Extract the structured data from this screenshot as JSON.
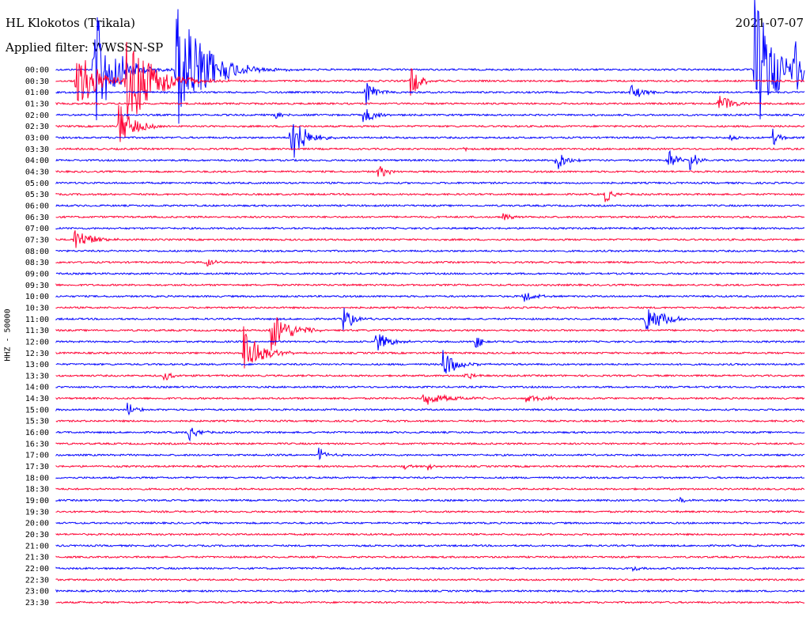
{
  "header": {
    "station": "HL Klokotos (Trikala)",
    "date": "2021-07-07",
    "filter": "Applied filter: WWSSN-SP",
    "channel_label": "HHZ - 50000"
  },
  "colors": {
    "even": "#0000ff",
    "odd": "#ff0033",
    "text": "#000000"
  },
  "chart_data": {
    "type": "line",
    "title": "HL Klokotos (Trikala)",
    "ylabel": "HHZ - 50000",
    "row_labels": [
      "00:00",
      "00:30",
      "01:00",
      "01:30",
      "02:00",
      "02:30",
      "03:00",
      "03:30",
      "04:00",
      "04:30",
      "05:00",
      "05:30",
      "06:00",
      "06:30",
      "07:00",
      "07:30",
      "08:00",
      "08:30",
      "09:00",
      "09:30",
      "10:00",
      "10:30",
      "11:00",
      "11:30",
      "12:00",
      "12:30",
      "13:00",
      "13:30",
      "14:00",
      "14:30",
      "15:00",
      "15:30",
      "16:00",
      "16:30",
      "17:00",
      "17:30",
      "18:00",
      "18:30",
      "19:00",
      "19:30",
      "20:00",
      "20:30",
      "21:00",
      "21:30",
      "22:00",
      "22:30",
      "23:00",
      "23:30"
    ],
    "row_minutes": 30,
    "events": [
      {
        "row": 0,
        "minute": 1.5,
        "amp": 85,
        "dur": 1.6
      },
      {
        "row": 0,
        "minute": 4.8,
        "amp": 95,
        "dur": 2.2
      },
      {
        "row": 0,
        "minute": 28.0,
        "amp": 100,
        "dur": 1.6
      },
      {
        "row": 0,
        "minute": 29.6,
        "amp": 40,
        "dur": 1.0
      },
      {
        "row": 1,
        "minute": 0.8,
        "amp": 55,
        "dur": 1.4
      },
      {
        "row": 1,
        "minute": 2.8,
        "amp": 70,
        "dur": 2.0
      },
      {
        "row": 1,
        "minute": 14.2,
        "amp": 22,
        "dur": 0.8
      },
      {
        "row": 2,
        "minute": 12.4,
        "amp": 18,
        "dur": 0.8
      },
      {
        "row": 2,
        "minute": 23.0,
        "amp": 10,
        "dur": 1.2
      },
      {
        "row": 3,
        "minute": 26.5,
        "amp": 18,
        "dur": 0.9
      },
      {
        "row": 4,
        "minute": 8.7,
        "amp": 8,
        "dur": 0.5
      },
      {
        "row": 4,
        "minute": 12.3,
        "amp": 15,
        "dur": 0.8
      },
      {
        "row": 5,
        "minute": 2.5,
        "amp": 30,
        "dur": 1.2
      },
      {
        "row": 6,
        "minute": 9.4,
        "amp": 40,
        "dur": 1.0
      },
      {
        "row": 6,
        "minute": 27.0,
        "amp": 8,
        "dur": 0.5
      },
      {
        "row": 6,
        "minute": 28.7,
        "amp": 12,
        "dur": 0.6
      },
      {
        "row": 7,
        "minute": 16.3,
        "amp": 5,
        "dur": 0.4
      },
      {
        "row": 8,
        "minute": 20.0,
        "amp": 18,
        "dur": 0.8
      },
      {
        "row": 8,
        "minute": 24.5,
        "amp": 15,
        "dur": 0.8
      },
      {
        "row": 8,
        "minute": 25.4,
        "amp": 15,
        "dur": 0.7
      },
      {
        "row": 9,
        "minute": 12.9,
        "amp": 12,
        "dur": 0.6
      },
      {
        "row": 11,
        "minute": 22.0,
        "amp": 12,
        "dur": 0.6
      },
      {
        "row": 13,
        "minute": 17.9,
        "amp": 7,
        "dur": 0.6
      },
      {
        "row": 15,
        "minute": 0.7,
        "amp": 18,
        "dur": 1.2
      },
      {
        "row": 17,
        "minute": 6.0,
        "amp": 8,
        "dur": 0.6
      },
      {
        "row": 20,
        "minute": 18.7,
        "amp": 9,
        "dur": 0.8
      },
      {
        "row": 22,
        "minute": 11.5,
        "amp": 20,
        "dur": 0.7
      },
      {
        "row": 22,
        "minute": 23.6,
        "amp": 22,
        "dur": 1.4
      },
      {
        "row": 23,
        "minute": 8.6,
        "amp": 30,
        "dur": 1.4
      },
      {
        "row": 24,
        "minute": 12.8,
        "amp": 15,
        "dur": 1.0
      },
      {
        "row": 24,
        "minute": 16.8,
        "amp": 10,
        "dur": 0.6
      },
      {
        "row": 25,
        "minute": 7.5,
        "amp": 40,
        "dur": 1.2
      },
      {
        "row": 26,
        "minute": 15.5,
        "amp": 20,
        "dur": 1.0
      },
      {
        "row": 27,
        "minute": 4.3,
        "amp": 8,
        "dur": 0.6
      },
      {
        "row": 27,
        "minute": 16.4,
        "amp": 8,
        "dur": 0.5
      },
      {
        "row": 29,
        "minute": 14.7,
        "amp": 10,
        "dur": 2.0
      },
      {
        "row": 29,
        "minute": 18.8,
        "amp": 5,
        "dur": 1.6
      },
      {
        "row": 30,
        "minute": 2.8,
        "amp": 12,
        "dur": 0.6
      },
      {
        "row": 32,
        "minute": 5.3,
        "amp": 12,
        "dur": 0.7
      },
      {
        "row": 34,
        "minute": 10.5,
        "amp": 10,
        "dur": 0.7
      },
      {
        "row": 35,
        "minute": 13.9,
        "amp": 5,
        "dur": 0.5
      },
      {
        "row": 35,
        "minute": 14.9,
        "amp": 5,
        "dur": 0.5
      },
      {
        "row": 38,
        "minute": 24.9,
        "amp": 8,
        "dur": 0.5
      },
      {
        "row": 44,
        "minute": 23.1,
        "amp": 7,
        "dur": 0.5
      }
    ]
  }
}
